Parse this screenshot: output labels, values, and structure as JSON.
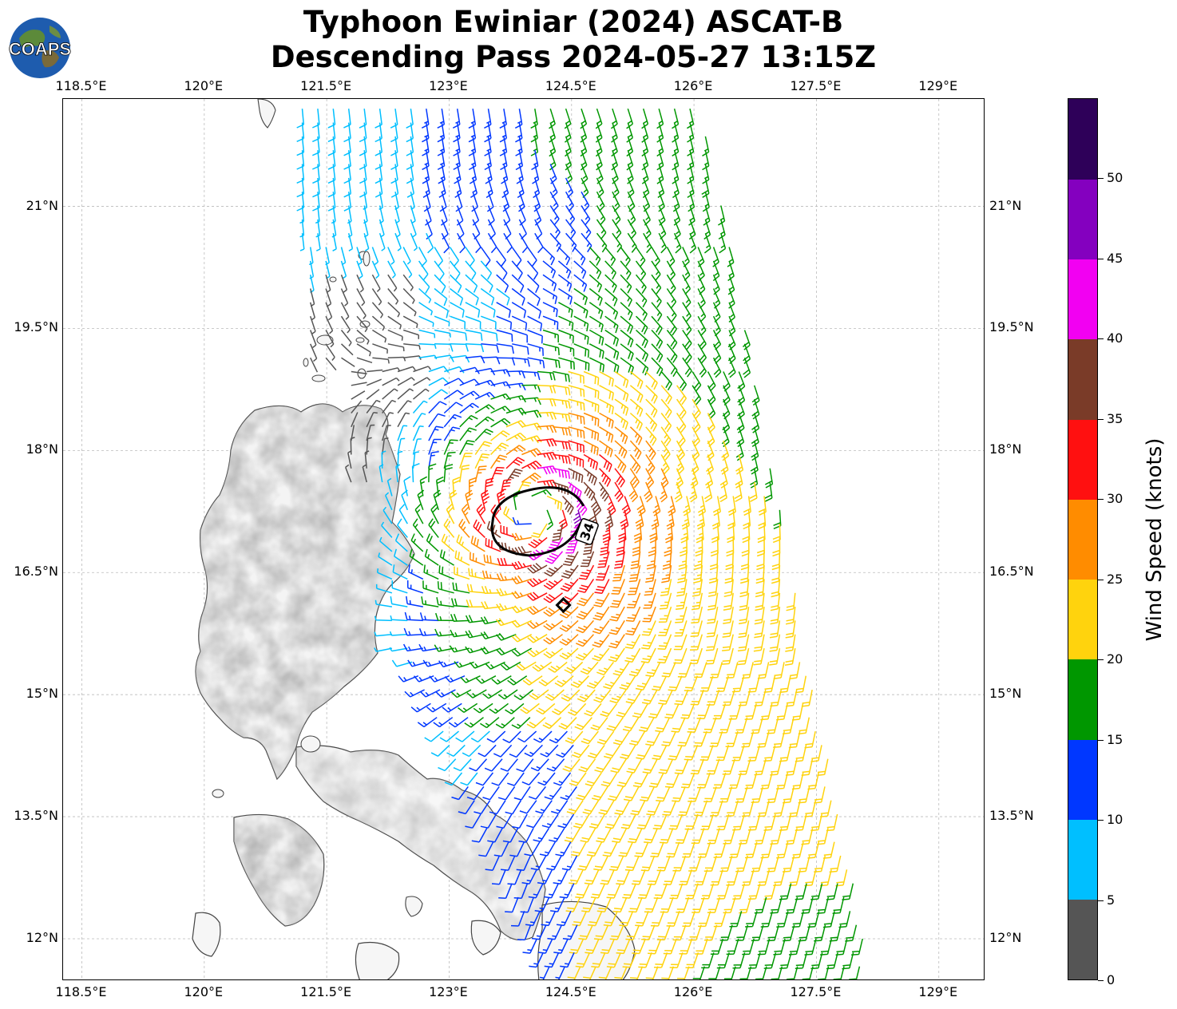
{
  "title": {
    "line1": "Typhoon Ewiniar (2024) ASCAT-B",
    "line2": "Descending Pass 2024-05-27 13:15Z"
  },
  "logo": {
    "text": "COAPS",
    "icon": "globe-logo-icon"
  },
  "map": {
    "lon_ticks": [
      "118.5°E",
      "120°E",
      "121.5°E",
      "123°E",
      "124.5°E",
      "126°E",
      "127.5°E",
      "129°E"
    ],
    "lat_ticks": [
      "21°N",
      "19.5°N",
      "18°N",
      "16.5°N",
      "15°N",
      "13.5°N",
      "12°N"
    ],
    "lon_values": [
      118.5,
      120,
      121.5,
      123,
      124.5,
      126,
      127.5,
      129
    ],
    "lat_values": [
      21,
      19.5,
      18,
      16.5,
      15,
      13.5,
      12
    ],
    "lon_range": [
      118.27,
      129.57
    ],
    "lat_range": [
      11.48,
      22.32
    ],
    "gridlines": true,
    "storm_center": {
      "lon": 124.4,
      "lat": 16.1
    },
    "contour_34kt": {
      "label": "34",
      "center_lon": 124.08,
      "center_lat": 17.22
    },
    "swath_east_edge_lon_north": 126.1,
    "swath_east_edge_lon_south": 128.2
  },
  "colorbar": {
    "title": "Wind Speed (knots)",
    "tick_labels": [
      "0",
      "5",
      "10",
      "15",
      "20",
      "25",
      "30",
      "35",
      "40",
      "45",
      "50"
    ],
    "max": 55,
    "bins": [
      {
        "min": 0,
        "max": 5,
        "color": "#555555"
      },
      {
        "min": 5,
        "max": 10,
        "color": "#00bfff"
      },
      {
        "min": 10,
        "max": 15,
        "color": "#0037ff"
      },
      {
        "min": 15,
        "max": 20,
        "color": "#009700"
      },
      {
        "min": 20,
        "max": 25,
        "color": "#ffd30d"
      },
      {
        "min": 25,
        "max": 30,
        "color": "#ff8c00"
      },
      {
        "min": 30,
        "max": 35,
        "color": "#ff1010"
      },
      {
        "min": 35,
        "max": 40,
        "color": "#7a3b28"
      },
      {
        "min": 40,
        "max": 45,
        "color": "#f200f2"
      },
      {
        "min": 45,
        "max": 50,
        "color": "#8400bf"
      },
      {
        "min": 50,
        "max": 55,
        "color": "#2e0059"
      }
    ]
  }
}
